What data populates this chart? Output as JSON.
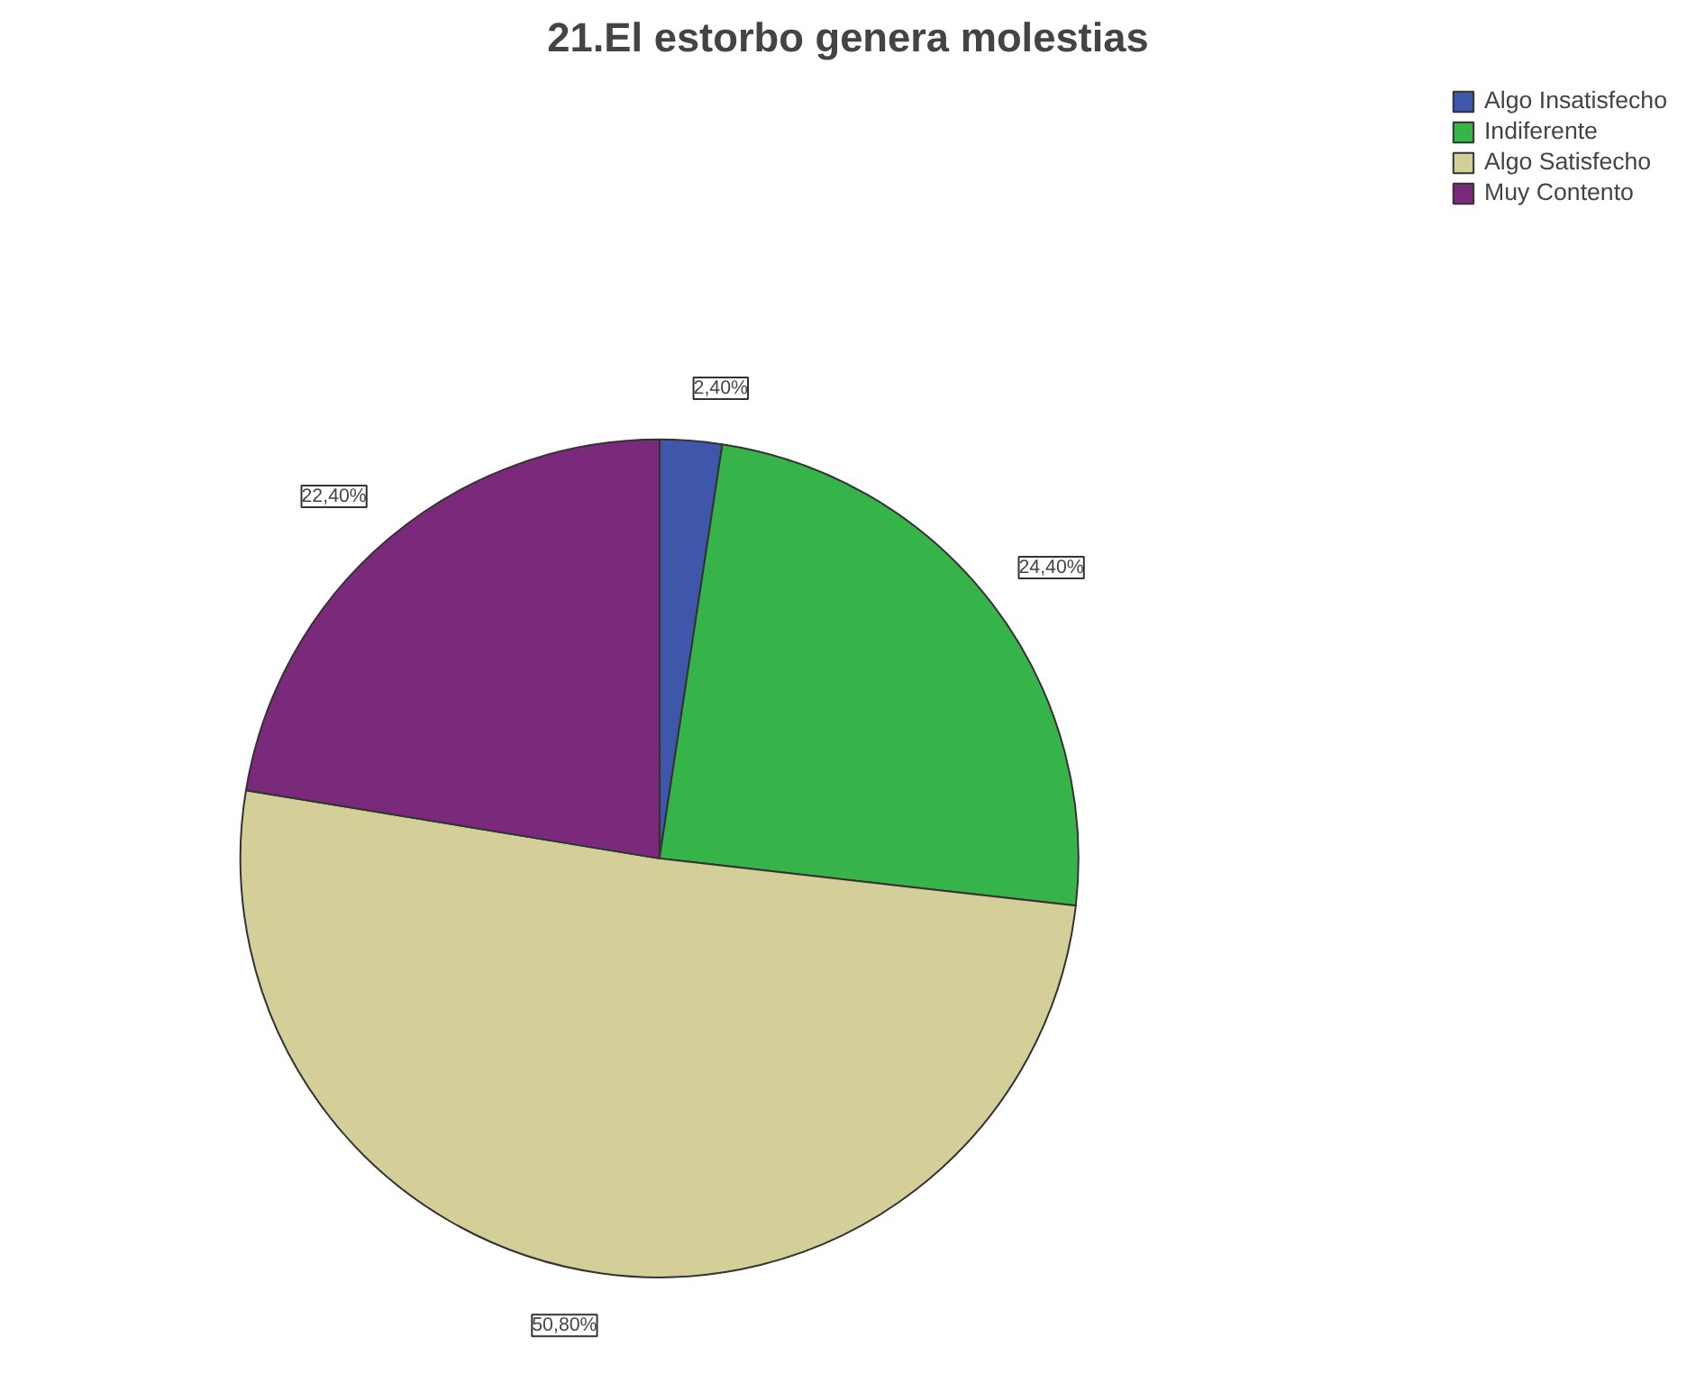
{
  "chart_data": {
    "type": "pie",
    "title": "21.El estorbo genera molestias",
    "categories": [
      "Algo Insatisfecho",
      "Indiferente",
      "Algo Satisfecho",
      "Muy Contento"
    ],
    "values": [
      2.4,
      24.4,
      50.8,
      22.4
    ],
    "colors": [
      "#3e57ab",
      "#36b44a",
      "#d4ce98",
      "#7b2a7b"
    ],
    "value_labels": [
      "2,40%",
      "24,40%",
      "50,80%",
      "22,40%"
    ],
    "legend": "top right"
  }
}
